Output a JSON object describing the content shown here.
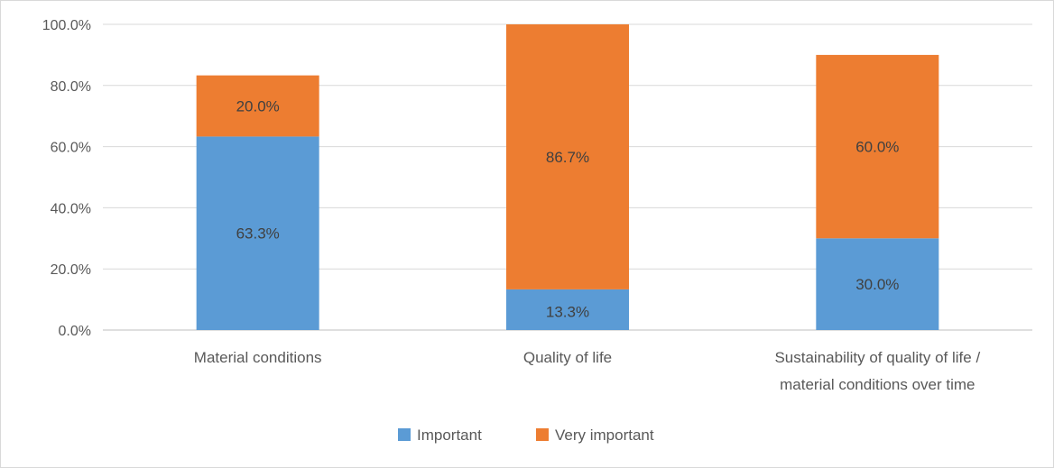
{
  "chart_data": {
    "type": "bar",
    "stacked": true,
    "categories": [
      [
        "Material conditions"
      ],
      [
        "Quality of life"
      ],
      [
        "Sustainability of quality of life /",
        "material conditions over time"
      ]
    ],
    "series": [
      {
        "name": "Important",
        "color": "#5b9bd5",
        "values": [
          63.3,
          13.3,
          30.0
        ],
        "labels": [
          "63.3%",
          "13.3%",
          "30.0%"
        ]
      },
      {
        "name": "Very important",
        "color": "#ed7d31",
        "values": [
          20.0,
          86.7,
          60.0
        ],
        "labels": [
          "20.0%",
          "86.7%",
          "60.0%"
        ]
      }
    ],
    "ylim": [
      0,
      100
    ],
    "yticks": [
      0,
      20,
      40,
      60,
      80,
      100
    ],
    "ytick_labels": [
      "0.0%",
      "20.0%",
      "40.0%",
      "60.0%",
      "80.0%",
      "100.0%"
    ],
    "grid": true,
    "legend_position": "bottom"
  }
}
